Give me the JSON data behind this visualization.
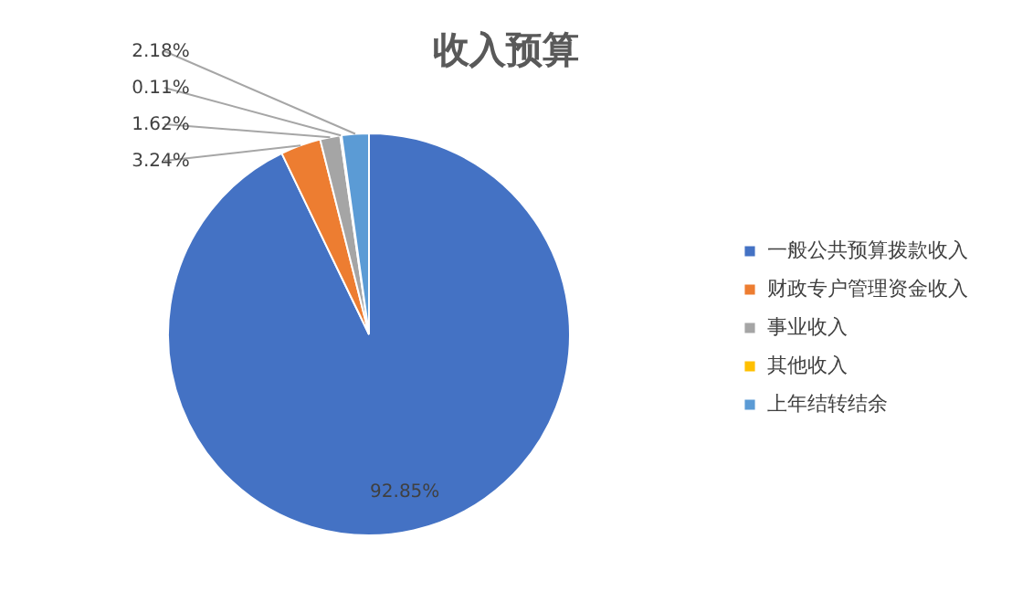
{
  "chart_data": {
    "type": "pie",
    "title": "收入预算",
    "categories": [
      "一般公共预算拨款收入",
      "财政专户管理资金收入",
      "事业收入",
      "其他收入",
      "上年结转结余"
    ],
    "values": [
      92.85,
      3.24,
      1.62,
      0.11,
      2.18
    ],
    "colors": [
      "#4472c4",
      "#ed7d31",
      "#a5a5a5",
      "#ffc000",
      "#5b9bd5"
    ],
    "value_labels": [
      "92.85%",
      "3.24%",
      "1.62%",
      "0.11%",
      "2.18%"
    ],
    "legend": "right"
  }
}
